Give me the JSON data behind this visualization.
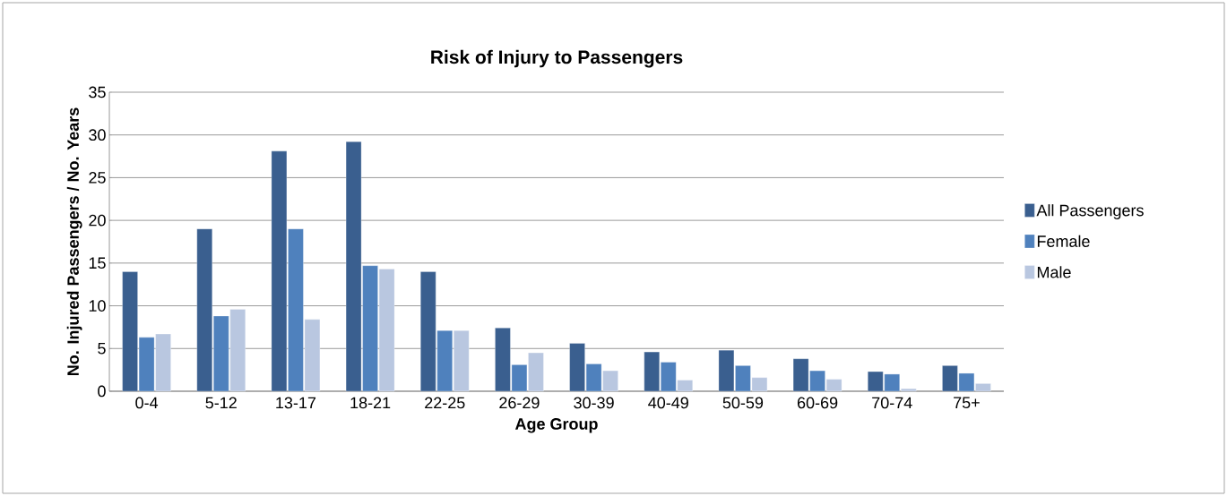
{
  "chart_data": {
    "type": "bar",
    "title": "Risk of Injury to Passengers",
    "xlabel": "Age Group",
    "ylabel": "No. Injured Passengers / No. Years",
    "categories": [
      "0-4",
      "5-12",
      "13-17",
      "18-21",
      "22-25",
      "26-29",
      "30-39",
      "40-49",
      "50-59",
      "60-69",
      "70-74",
      "75+"
    ],
    "series": [
      {
        "name": "All Passengers",
        "color": "#3a5f8f",
        "values": [
          14,
          19,
          28.1,
          29.2,
          14,
          7.4,
          5.6,
          4.6,
          4.8,
          3.8,
          2.3,
          3.0
        ]
      },
      {
        "name": "Female",
        "color": "#4f81bd",
        "values": [
          6.3,
          8.8,
          19,
          14.7,
          7.1,
          3.1,
          3.2,
          3.4,
          3.0,
          2.4,
          2.0,
          2.1
        ]
      },
      {
        "name": "Male",
        "color": "#b9c7e0",
        "values": [
          6.7,
          9.6,
          8.4,
          14.3,
          7.1,
          4.5,
          2.4,
          1.3,
          1.6,
          1.4,
          0.3,
          0.9
        ]
      }
    ],
    "ylim": [
      0,
      35
    ],
    "yticks": [
      0,
      5,
      10,
      15,
      20,
      25,
      30,
      35
    ],
    "grid": "y",
    "legend": "right"
  }
}
